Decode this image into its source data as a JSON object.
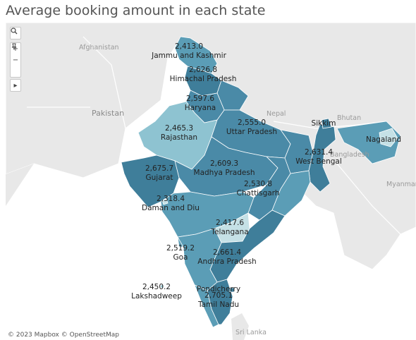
{
  "title": "Average booking amount in each state",
  "colors": {
    "dark": "#3f7e9a",
    "mid_dark": "#4a8aa7",
    "mid": "#5b9db6",
    "light": "#8ec3d1",
    "lightest": "#c5e1e6",
    "water": "#ffffff",
    "land": "#e6e6e6"
  },
  "controls": {
    "search_icon": "search-icon",
    "zoom_in": "+",
    "zoom_out": "−",
    "pin_icon": "pin-icon",
    "expand_icon": "▸"
  },
  "background_labels": {
    "afghanistan": "Afghanistan",
    "pakistan": "Pakistan",
    "nepal": "Nepal",
    "bhutan": "Bhutan",
    "bangladesh": "Bangladesh",
    "myanmar": "Myanmar",
    "sri_lanka": "Sri Lanka"
  },
  "states": [
    {
      "name": "Jammu and Kashmir",
      "value": "2,413.0",
      "shade": "mid"
    },
    {
      "name": "Himachal Pradesh",
      "value": "2,626.8",
      "shade": "dark"
    },
    {
      "name": "Haryana",
      "value": "2,597.6",
      "shade": "mid_dark"
    },
    {
      "name": "Uttar Pradesh",
      "value": "2,555.0",
      "shade": "mid_dark"
    },
    {
      "name": "Rajasthan",
      "value": "2,465.3",
      "shade": "light"
    },
    {
      "name": "Sikkim",
      "value": "",
      "shade": "dark"
    },
    {
      "name": "Nagaland",
      "value": "",
      "shade": "lightest"
    },
    {
      "name": "West Bengal",
      "value": "2,631.4",
      "shade": "dark"
    },
    {
      "name": "Gujarat",
      "value": "2,675.7",
      "shade": "dark"
    },
    {
      "name": "Madhya Pradesh",
      "value": "2,609.3",
      "shade": "mid_dark"
    },
    {
      "name": "Chattisgarh",
      "value": "2,530.8",
      "shade": "mid_dark"
    },
    {
      "name": "Daman and Diu",
      "value": "2,318.4",
      "shade": "lightest"
    },
    {
      "name": "Telangana",
      "value": "2,417.6",
      "shade": "lightest"
    },
    {
      "name": "Goa",
      "value": "2,519.2",
      "shade": "mid"
    },
    {
      "name": "Andhra Pradesh",
      "value": "2,661.4",
      "shade": "dark"
    },
    {
      "name": "Lakshadweep",
      "value": "2,450.2",
      "shade": "light"
    },
    {
      "name": "Pondicherry",
      "value": "",
      "shade": "dark"
    },
    {
      "name": "Tamil Nadu",
      "value": "2,705.1",
      "shade": "dark"
    }
  ],
  "attribution": "© 2023 Mapbox © OpenStreetMap"
}
